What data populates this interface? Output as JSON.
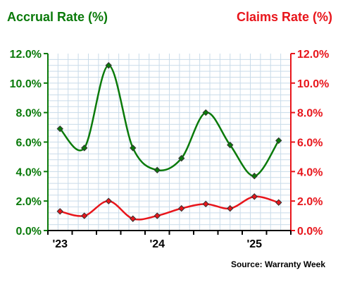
{
  "chart_data": {
    "type": "line",
    "left_axis_title": "Accrual Rate (%)",
    "right_axis_title": "Claims Rate (%)",
    "source": "Source: Warranty Week",
    "x_tick_labels": [
      "'23",
      "'24",
      "'25"
    ],
    "y_tick_labels": [
      "0.0%",
      "2.0%",
      "4.0%",
      "6.0%",
      "8.0%",
      "10.0%",
      "12.0%"
    ],
    "ylim": [
      0,
      12
    ],
    "grid": true,
    "colors": {
      "accrual": "#0a7a0a",
      "claims": "#e8151b"
    },
    "x": [
      "2023Q1",
      "2023Q2",
      "2023Q3",
      "2023Q4",
      "2024Q1",
      "2024Q2",
      "2024Q3",
      "2024Q4",
      "2025Q1",
      "2025Q2"
    ],
    "series": [
      {
        "name": "Accrual Rate (%)",
        "values": [
          6.9,
          5.6,
          11.2,
          5.6,
          4.1,
          4.9,
          8.0,
          5.8,
          3.7,
          6.1
        ]
      },
      {
        "name": "Claims Rate (%)",
        "values": [
          1.3,
          1.0,
          2.0,
          0.8,
          1.0,
          1.5,
          1.8,
          1.5,
          2.3,
          1.9
        ]
      }
    ]
  }
}
